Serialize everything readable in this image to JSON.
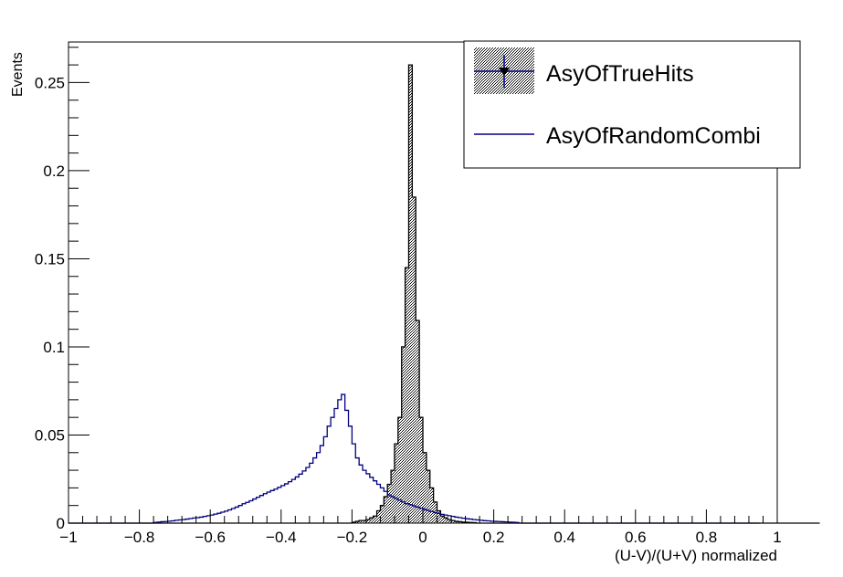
{
  "chart_data": {
    "type": "histogram",
    "xlabel": "(U-V)/(U+V) normalized",
    "ylabel": "Events",
    "xlim": [
      -1,
      1
    ],
    "ylim": [
      0,
      0.273
    ],
    "x_ticks": [
      -1,
      -0.8,
      -0.6,
      -0.4,
      -0.2,
      0,
      0.2,
      0.4,
      0.6,
      0.8,
      1
    ],
    "x_tick_labels": [
      "−1",
      "−0.8",
      "−0.6",
      "−0.4",
      "−0.2",
      "0",
      "0.2",
      "0.4",
      "0.6",
      "0.8",
      "1"
    ],
    "y_ticks": [
      0,
      0.05,
      0.1,
      0.15,
      0.2,
      0.25
    ],
    "y_tick_labels": [
      "0",
      "0.05",
      "0.1",
      "0.15",
      "0.2",
      "0.25"
    ],
    "legend_position": "top-right",
    "bin_edges_start": -1,
    "bin_width": 0.01,
    "series": [
      {
        "name": "AsyOfTrueHits",
        "style": "hatched",
        "color": "#000000",
        "values": [
          0,
          0,
          0,
          0,
          0,
          0,
          0,
          0,
          0,
          0,
          0,
          0,
          0,
          0,
          0,
          0,
          0,
          0,
          0,
          0,
          0,
          0,
          0,
          0,
          0,
          0,
          0,
          0,
          0,
          0,
          0,
          0,
          0,
          0,
          0,
          0,
          0,
          0,
          0,
          0,
          0,
          0,
          0,
          0,
          0,
          0,
          0,
          0,
          0,
          0,
          0,
          0,
          0,
          0,
          0,
          0,
          0,
          0,
          0,
          0,
          0,
          0,
          0,
          0,
          0,
          0,
          0,
          0,
          0,
          0,
          0,
          0,
          0,
          0,
          0,
          0,
          0,
          0,
          0,
          0,
          0.0005,
          0.001,
          0.0015,
          0.0015,
          0.002,
          0.003,
          0.004,
          0.007,
          0.01,
          0.015,
          0.022,
          0.03,
          0.045,
          0.06,
          0.1,
          0.145,
          0.26,
          0.185,
          0.115,
          0.06,
          0.04,
          0.03,
          0.02,
          0.012,
          0.007,
          0.004,
          0.003,
          0.002,
          0.0015,
          0.001,
          0.0008,
          0.0006,
          0.0005,
          0.0004,
          0.0003,
          0,
          0,
          0,
          0,
          0,
          0,
          0,
          0,
          0,
          0,
          0,
          0,
          0,
          0,
          0,
          0,
          0,
          0,
          0,
          0,
          0,
          0,
          0,
          0,
          0,
          0,
          0,
          0,
          0,
          0,
          0,
          0,
          0,
          0,
          0,
          0,
          0,
          0,
          0,
          0,
          0,
          0,
          0,
          0,
          0,
          0,
          0,
          0,
          0,
          0,
          0,
          0,
          0,
          0,
          0,
          0,
          0,
          0,
          0,
          0,
          0,
          0,
          0,
          0,
          0,
          0,
          0,
          0,
          0,
          0,
          0,
          0,
          0,
          0,
          0,
          0,
          0,
          0,
          0,
          0,
          0,
          0,
          0,
          0,
          0,
          0,
          0,
          0,
          0,
          0,
          0,
          0,
          0,
          0,
          0,
          0,
          0
        ]
      },
      {
        "name": "AsyOfRandomCombi",
        "style": "line",
        "color": "#000080",
        "values": [
          0,
          0,
          0,
          0,
          0,
          0,
          0,
          0,
          0,
          0,
          0,
          0,
          0,
          0,
          0,
          0,
          0,
          0,
          0,
          0,
          0,
          0,
          0,
          0,
          0.0004,
          0.0006,
          0.0008,
          0.0009,
          0.0011,
          0.0013,
          0.0016,
          0.0018,
          0.002,
          0.0023,
          0.0026,
          0.0029,
          0.0031,
          0.0034,
          0.0038,
          0.0042,
          0.0046,
          0.0051,
          0.0056,
          0.0062,
          0.0068,
          0.0075,
          0.0083,
          0.0091,
          0.01,
          0.011,
          0.0118,
          0.0127,
          0.0137,
          0.0147,
          0.0157,
          0.0167,
          0.0176,
          0.0185,
          0.0193,
          0.0203,
          0.0213,
          0.0223,
          0.0235,
          0.0248,
          0.0262,
          0.0278,
          0.0296,
          0.0316,
          0.034,
          0.037,
          0.04,
          0.044,
          0.049,
          0.055,
          0.06,
          0.065,
          0.07,
          0.073,
          0.064,
          0.055,
          0.045,
          0.037,
          0.033,
          0.03,
          0.028,
          0.026,
          0.024,
          0.022,
          0.02,
          0.018,
          0.016,
          0.015,
          0.014,
          0.013,
          0.012,
          0.011,
          0.0105,
          0.0098,
          0.0091,
          0.0085,
          0.0078,
          0.0072,
          0.0066,
          0.006,
          0.0055,
          0.005,
          0.0046,
          0.0042,
          0.0038,
          0.0034,
          0.0031,
          0.0028,
          0.0025,
          0.0023,
          0.002,
          0.0018,
          0.0016,
          0.0014,
          0.0013,
          0.0011,
          0.001,
          0.0009,
          0.0008,
          0.0007,
          0.0006,
          0.0005,
          0.0004,
          0,
          0,
          0,
          0,
          0,
          0,
          0,
          0,
          0,
          0,
          0,
          0,
          0,
          0,
          0,
          0,
          0,
          0,
          0,
          0,
          0,
          0,
          0,
          0,
          0,
          0,
          0,
          0,
          0,
          0,
          0,
          0,
          0,
          0,
          0,
          0,
          0,
          0,
          0,
          0,
          0,
          0,
          0,
          0,
          0,
          0,
          0,
          0,
          0,
          0,
          0,
          0,
          0,
          0,
          0,
          0,
          0,
          0,
          0,
          0,
          0,
          0,
          0,
          0,
          0,
          0,
          0,
          0
        ]
      }
    ]
  },
  "colors": {
    "frame": "#000000",
    "line_series": "#000080",
    "legend_marker": "#000080"
  }
}
